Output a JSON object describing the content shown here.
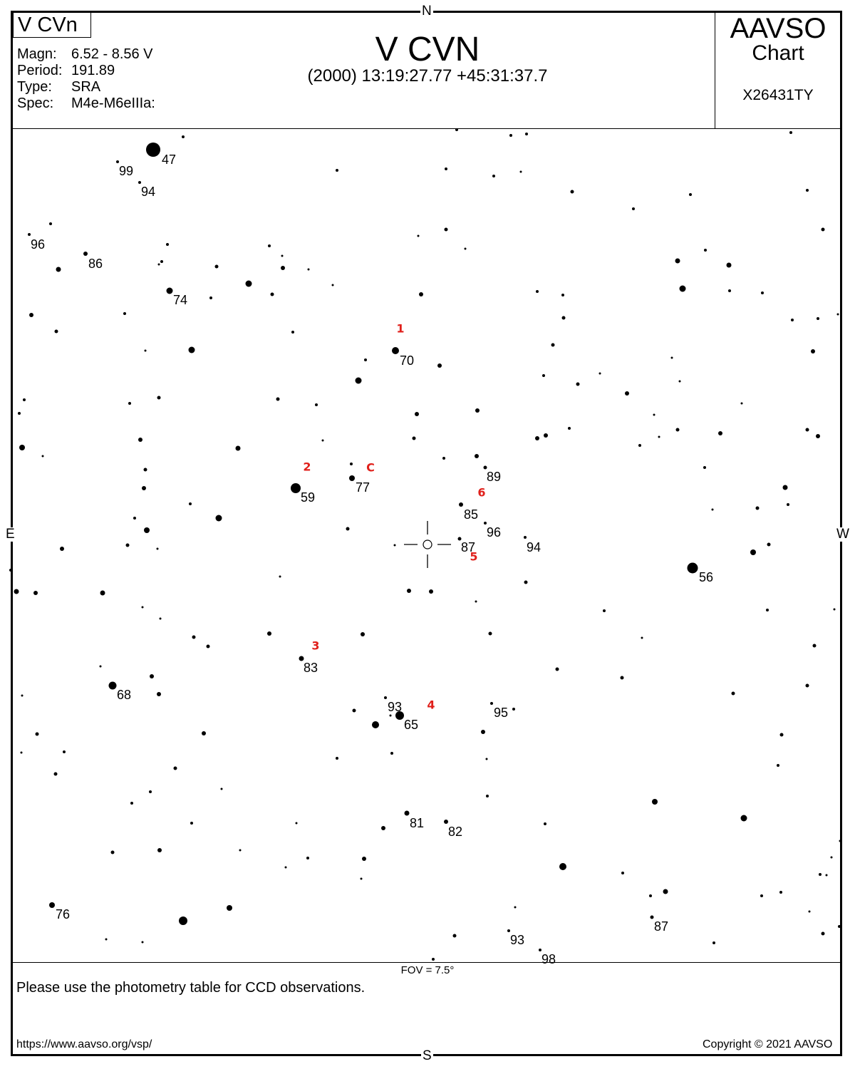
{
  "header": {
    "chart_tag": "V CVn",
    "info": [
      {
        "key": "Magn:",
        "value": "6.52 - 8.56 V"
      },
      {
        "key": "Period:",
        "value": "191.89"
      },
      {
        "key": "Type:",
        "value": "SRA"
      },
      {
        "key": "Spec:",
        "value": "M4e-M6eIIIa:"
      }
    ],
    "star_name": "V CVN",
    "coordinates": "(2000) 13:19:27.77  +45:31:37.7",
    "brand": "AAVSO",
    "brand_sub": "Chart",
    "chart_id": "X26431TY"
  },
  "directions": {
    "north": "N",
    "south": "S",
    "east": "E",
    "west": "W"
  },
  "footer": {
    "fov": "FOV = 7.5°",
    "note": "Please use the photometry table for CCD observations.",
    "url": "https://www.aavso.org/vsp/",
    "copyright": "Copyright © 2021 AAVSO"
  },
  "colors": {
    "ink": "#000000",
    "marker": "#e0201b",
    "paper": "#ffffff"
  },
  "comparison_stars": [
    {
      "label": "47"
    },
    {
      "label": "99"
    },
    {
      "label": "94"
    },
    {
      "label": "96"
    },
    {
      "label": "86"
    },
    {
      "label": "74"
    },
    {
      "label": "70"
    },
    {
      "label": "89"
    },
    {
      "label": "59"
    },
    {
      "label": "77"
    },
    {
      "label": "85"
    },
    {
      "label": "96"
    },
    {
      "label": "87"
    },
    {
      "label": "94"
    },
    {
      "label": "56"
    },
    {
      "label": "83"
    },
    {
      "label": "68"
    },
    {
      "label": "93"
    },
    {
      "label": "65"
    },
    {
      "label": "95"
    },
    {
      "label": "81"
    },
    {
      "label": "82"
    },
    {
      "label": "76"
    },
    {
      "label": "87"
    },
    {
      "label": "93"
    },
    {
      "label": "98"
    }
  ],
  "markers": [
    {
      "label": "1"
    },
    {
      "label": "2"
    },
    {
      "label": "C"
    },
    {
      "label": "6"
    },
    {
      "label": "5"
    },
    {
      "label": "3"
    },
    {
      "label": "4"
    }
  ]
}
